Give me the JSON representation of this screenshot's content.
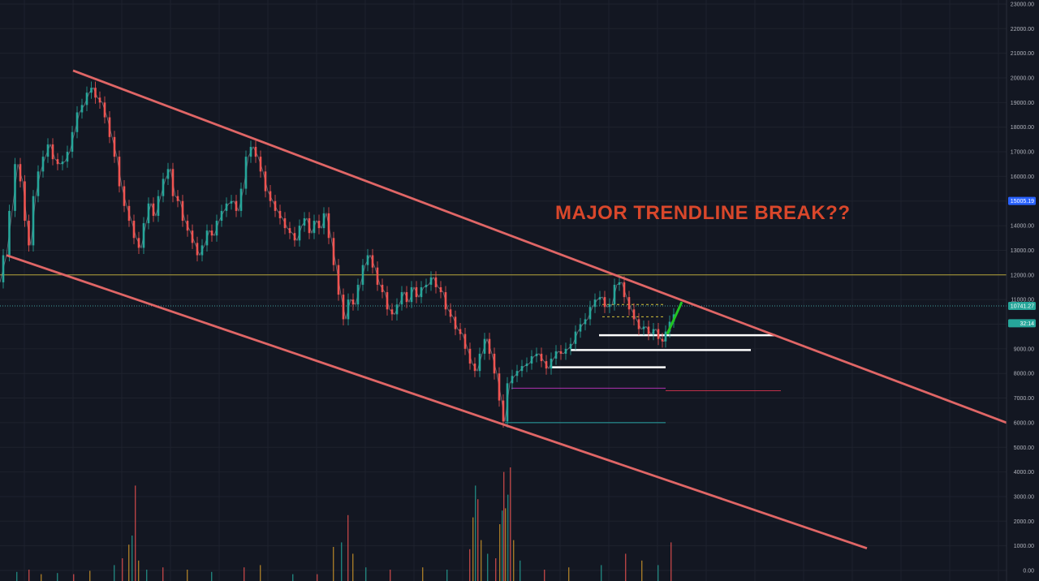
{
  "chart_data": {
    "type": "line",
    "title": "MAJOR TRENDLINE BREAK??",
    "y_axis": {
      "ylim": [
        0,
        23000
      ],
      "position": "right",
      "ticks": [
        0,
        1000,
        2000,
        3000,
        4000,
        5000,
        6000,
        7000,
        8000,
        9000,
        10000,
        11000,
        12000,
        13000,
        14000,
        15000,
        16000,
        17000,
        18000,
        19000,
        20000,
        21000,
        22000,
        23000
      ],
      "tick_labels": [
        "0.00",
        "1000.00",
        "2000.00",
        "3000.00",
        "4000.00",
        "5000.00",
        "6000.00",
        "7000.00",
        "8000.00",
        "9000.00",
        "10000.00",
        "11000.00",
        "12000.00",
        "13000.00",
        "14000.00",
        "15000.00",
        "16000.00",
        "17000.00",
        "18000.00",
        "19000.00",
        "20000.00",
        "21000.00",
        "22000.00",
        "23000.00"
      ]
    },
    "grid": true,
    "price_badges": [
      {
        "label": "15005.19",
        "value": 15005,
        "color": "#2962ff"
      },
      {
        "label": "10741.27",
        "value": 10741,
        "color": "#26a69a"
      },
      {
        "label": "32:14",
        "value": 10300,
        "color": "#26a69a"
      }
    ],
    "price_series": [
      [
        0,
        11700
      ],
      [
        8,
        12800
      ],
      [
        15,
        14600
      ],
      [
        22,
        16500
      ],
      [
        28,
        15800
      ],
      [
        33,
        14200
      ],
      [
        38,
        13200
      ],
      [
        44,
        15200
      ],
      [
        50,
        16200
      ],
      [
        56,
        16800
      ],
      [
        62,
        17300
      ],
      [
        68,
        16700
      ],
      [
        74,
        16500
      ],
      [
        80,
        16600
      ],
      [
        86,
        17000
      ],
      [
        92,
        17800
      ],
      [
        98,
        18600
      ],
      [
        104,
        18900
      ],
      [
        110,
        19400
      ],
      [
        115,
        19600
      ],
      [
        120,
        19200
      ],
      [
        126,
        19000
      ],
      [
        132,
        18400
      ],
      [
        138,
        17600
      ],
      [
        144,
        16800
      ],
      [
        150,
        15600
      ],
      [
        156,
        14800
      ],
      [
        162,
        14200
      ],
      [
        168,
        13500
      ],
      [
        174,
        13100
      ],
      [
        180,
        14100
      ],
      [
        186,
        14900
      ],
      [
        192,
        14400
      ],
      [
        198,
        15200
      ],
      [
        204,
        15900
      ],
      [
        210,
        16300
      ],
      [
        216,
        15200
      ],
      [
        222,
        15000
      ],
      [
        228,
        14200
      ],
      [
        234,
        13800
      ],
      [
        240,
        13300
      ],
      [
        246,
        12800
      ],
      [
        252,
        13200
      ],
      [
        258,
        13800
      ],
      [
        264,
        13600
      ],
      [
        270,
        14200
      ],
      [
        276,
        14600
      ],
      [
        282,
        14900
      ],
      [
        288,
        15000
      ],
      [
        294,
        14600
      ],
      [
        300,
        15500
      ],
      [
        306,
        16800
      ],
      [
        312,
        17200
      ],
      [
        318,
        16800
      ],
      [
        324,
        16200
      ],
      [
        330,
        15400
      ],
      [
        336,
        15000
      ],
      [
        342,
        14600
      ],
      [
        348,
        14300
      ],
      [
        354,
        13900
      ],
      [
        360,
        13700
      ],
      [
        366,
        13400
      ],
      [
        372,
        14000
      ],
      [
        378,
        14300
      ],
      [
        384,
        13700
      ],
      [
        390,
        14200
      ],
      [
        396,
        13900
      ],
      [
        402,
        14500
      ],
      [
        408,
        13500
      ],
      [
        414,
        12400
      ],
      [
        420,
        11200
      ],
      [
        426,
        10200
      ],
      [
        432,
        11000
      ],
      [
        438,
        10800
      ],
      [
        444,
        11600
      ],
      [
        450,
        12400
      ],
      [
        456,
        12800
      ],
      [
        462,
        12300
      ],
      [
        468,
        11600
      ],
      [
        474,
        11300
      ],
      [
        480,
        10600
      ],
      [
        486,
        10400
      ],
      [
        492,
        10800
      ],
      [
        498,
        11300
      ],
      [
        504,
        10900
      ],
      [
        510,
        11500
      ],
      [
        516,
        11100
      ],
      [
        522,
        11500
      ],
      [
        528,
        11600
      ],
      [
        534,
        11900
      ],
      [
        540,
        11500
      ],
      [
        546,
        11300
      ],
      [
        552,
        10600
      ],
      [
        558,
        10300
      ],
      [
        564,
        9800
      ],
      [
        570,
        9600
      ],
      [
        576,
        9000
      ],
      [
        582,
        8400
      ],
      [
        588,
        8100
      ],
      [
        594,
        8800
      ],
      [
        600,
        9400
      ],
      [
        606,
        8800
      ],
      [
        612,
        8000
      ],
      [
        618,
        6900
      ],
      [
        622,
        6050
      ],
      [
        628,
        7600
      ],
      [
        634,
        7900
      ],
      [
        640,
        8100
      ],
      [
        646,
        8300
      ],
      [
        652,
        8400
      ],
      [
        658,
        8700
      ],
      [
        664,
        8800
      ],
      [
        670,
        8500
      ],
      [
        676,
        8200
      ],
      [
        682,
        8600
      ],
      [
        688,
        8900
      ],
      [
        694,
        8800
      ],
      [
        700,
        9000
      ],
      [
        706,
        9200
      ],
      [
        712,
        9700
      ],
      [
        718,
        10000
      ],
      [
        724,
        10200
      ],
      [
        730,
        10700
      ],
      [
        736,
        11000
      ],
      [
        742,
        11100
      ],
      [
        748,
        10700
      ],
      [
        754,
        10800
      ],
      [
        760,
        11600
      ],
      [
        766,
        11700
      ],
      [
        772,
        11100
      ],
      [
        778,
        10600
      ],
      [
        784,
        10200
      ],
      [
        790,
        9800
      ],
      [
        796,
        9900
      ],
      [
        802,
        9600
      ],
      [
        808,
        9800
      ],
      [
        814,
        9400
      ],
      [
        818,
        9300
      ],
      [
        822,
        9700
      ],
      [
        828,
        10100
      ],
      [
        832,
        10400
      ]
    ],
    "volume_series": [
      [
        20,
        400
      ],
      [
        35,
        500
      ],
      [
        50,
        300
      ],
      [
        70,
        350
      ],
      [
        90,
        300
      ],
      [
        110,
        450
      ],
      [
        140,
        700
      ],
      [
        150,
        1000
      ],
      [
        158,
        1600
      ],
      [
        162,
        2000
      ],
      [
        166,
        4200
      ],
      [
        170,
        900
      ],
      [
        180,
        500
      ],
      [
        200,
        600
      ],
      [
        230,
        500
      ],
      [
        260,
        400
      ],
      [
        300,
        600
      ],
      [
        320,
        700
      ],
      [
        360,
        300
      ],
      [
        390,
        300
      ],
      [
        410,
        1500
      ],
      [
        420,
        1700
      ],
      [
        428,
        2900
      ],
      [
        434,
        1200
      ],
      [
        450,
        600
      ],
      [
        480,
        500
      ],
      [
        520,
        600
      ],
      [
        550,
        500
      ],
      [
        578,
        1400
      ],
      [
        582,
        2800
      ],
      [
        585,
        4200
      ],
      [
        588,
        3600
      ],
      [
        592,
        1800
      ],
      [
        600,
        1200
      ],
      [
        610,
        1000
      ],
      [
        615,
        2500
      ],
      [
        618,
        3100
      ],
      [
        620,
        4800
      ],
      [
        622,
        3200
      ],
      [
        625,
        3800
      ],
      [
        628,
        5000
      ],
      [
        632,
        1800
      ],
      [
        640,
        900
      ],
      [
        670,
        500
      ],
      [
        700,
        600
      ],
      [
        740,
        700
      ],
      [
        770,
        1200
      ],
      [
        790,
        900
      ],
      [
        810,
        700
      ],
      [
        826,
        1700
      ]
    ],
    "channel_lines": [
      {
        "name": "upper",
        "from": [
          90,
          20300
        ],
        "to": [
          1240,
          6000
        ],
        "color": "#e06666"
      },
      {
        "name": "lower",
        "from": [
          8,
          12800
        ],
        "to": [
          1068,
          900
        ],
        "color": "#e06666"
      }
    ],
    "horizontal_levels": [
      {
        "value": 12000,
        "x_start": 0,
        "x_end": 1240,
        "color": "#b5a43a",
        "style": "solid"
      },
      {
        "value": 10741,
        "x_start": 0,
        "x_end": 1240,
        "color": "#3f9f9f",
        "style": "dotted"
      },
      {
        "value": 10800,
        "x_start": 742,
        "x_end": 820,
        "color": "#d4c23a",
        "style": "dashed"
      },
      {
        "value": 10300,
        "x_start": 742,
        "x_end": 820,
        "color": "#d4c23a",
        "style": "dashed"
      },
      {
        "value": 9550,
        "x_start": 738,
        "x_end": 955,
        "color": "#ffffff",
        "style": "solid"
      },
      {
        "value": 8950,
        "x_start": 703,
        "x_end": 925,
        "color": "#ffffff",
        "style": "solid"
      },
      {
        "value": 8250,
        "x_start": 678,
        "x_end": 820,
        "color": "#ffffff",
        "style": "solid"
      },
      {
        "value": 7400,
        "x_start": 630,
        "x_end": 820,
        "color": "#b032b0",
        "style": "solid"
      },
      {
        "value": 7300,
        "x_start": 820,
        "x_end": 962,
        "color": "#c0304a",
        "style": "solid"
      },
      {
        "value": 6000,
        "x_start": 622,
        "x_end": 820,
        "color": "#2aa6a6",
        "style": "solid"
      }
    ],
    "breakout_arrow": {
      "from": [
        822,
        9600
      ],
      "to": [
        840,
        10900
      ],
      "color": "#22c422"
    }
  }
}
